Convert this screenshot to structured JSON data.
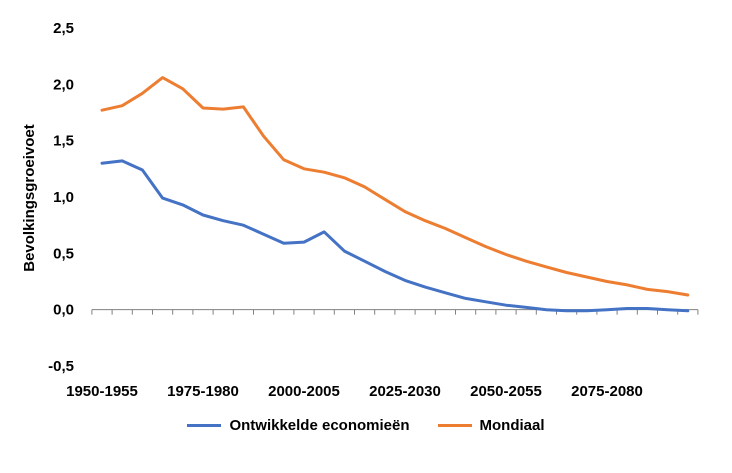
{
  "chart_data": {
    "type": "line",
    "ylabel": "Bevolkingsgroeivoet",
    "xlabel": "",
    "ylim": [
      -0.5,
      2.5
    ],
    "yticks": [
      "-0,5",
      "0,0",
      "0,5",
      "1,0",
      "1,5",
      "2,0",
      "2,5"
    ],
    "ytick_values": [
      -0.5,
      0.0,
      0.5,
      1.0,
      1.5,
      2.0,
      2.5
    ],
    "xtick_labels": [
      {
        "index": 0,
        "label": "1950-1955"
      },
      {
        "index": 5,
        "label": "1975-1980"
      },
      {
        "index": 10,
        "label": "2000-2005"
      },
      {
        "index": 15,
        "label": "2025-2030"
      },
      {
        "index": 20,
        "label": "2050-2055"
      },
      {
        "index": 25,
        "label": "2075-2080"
      }
    ],
    "num_points": 30,
    "grid": false,
    "legend_position": "bottom",
    "series": [
      {
        "name": "Ontwikkelde economieën",
        "color": "#4472C4",
        "values": [
          1.3,
          1.32,
          1.24,
          0.99,
          0.93,
          0.84,
          0.79,
          0.75,
          0.67,
          0.59,
          0.6,
          0.69,
          0.52,
          0.43,
          0.34,
          0.26,
          0.2,
          0.15,
          0.1,
          0.07,
          0.04,
          0.02,
          0.0,
          -0.01,
          -0.01,
          0.0,
          0.01,
          0.01,
          0.0,
          -0.01
        ]
      },
      {
        "name": "Mondiaal",
        "color": "#ED7D31",
        "values": [
          1.77,
          1.81,
          1.92,
          2.06,
          1.96,
          1.79,
          1.78,
          1.8,
          1.54,
          1.33,
          1.25,
          1.22,
          1.17,
          1.09,
          0.98,
          0.87,
          0.79,
          0.72,
          0.64,
          0.56,
          0.49,
          0.43,
          0.38,
          0.33,
          0.29,
          0.25,
          0.22,
          0.18,
          0.16,
          0.13
        ]
      }
    ]
  }
}
